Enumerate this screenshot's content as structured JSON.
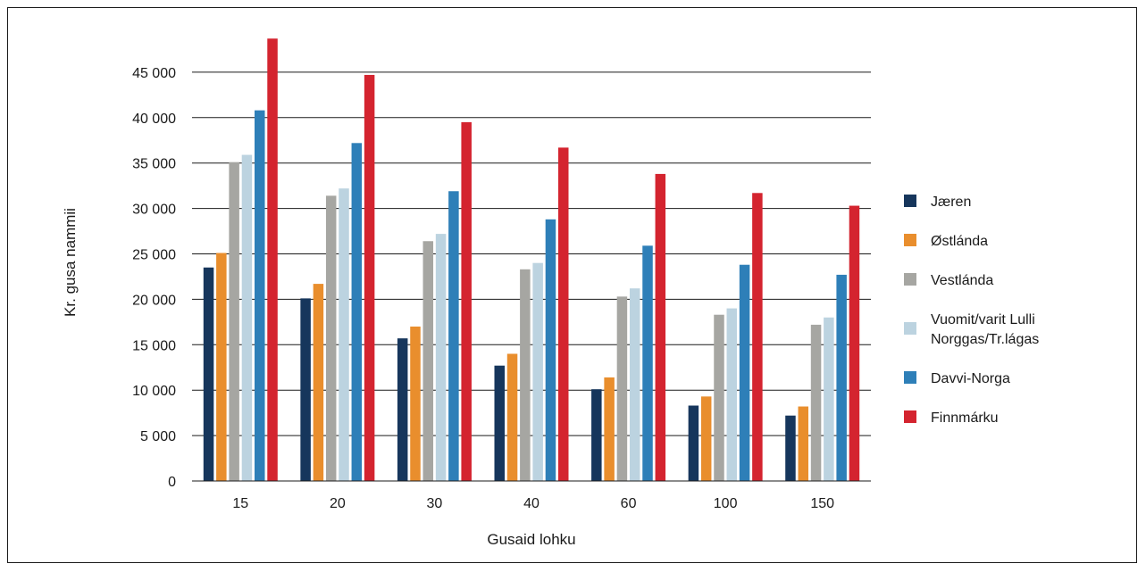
{
  "chart_data": {
    "type": "bar",
    "title": "",
    "xlabel": "Gusaid lohku",
    "ylabel": "Kr. gusa nammii",
    "ylim": [
      0,
      50000
    ],
    "yticks": [
      0,
      5000,
      10000,
      15000,
      20000,
      25000,
      30000,
      35000,
      40000,
      45000
    ],
    "ytick_labels": [
      "0",
      "5 000",
      "10 000",
      "15 000",
      "20 000",
      "25 000",
      "30 000",
      "35 000",
      "40 000",
      "45 000"
    ],
    "grid": true,
    "legend_position": "right",
    "categories": [
      "15",
      "20",
      "30",
      "40",
      "60",
      "100",
      "150"
    ],
    "series": [
      {
        "name": "Jæren",
        "color": "#16365c",
        "values": [
          23500,
          20100,
          15700,
          12700,
          10100,
          8300,
          7200
        ]
      },
      {
        "name": "Østlánda",
        "color": "#e98e2d",
        "values": [
          25100,
          21700,
          17000,
          14000,
          11400,
          9300,
          8200
        ]
      },
      {
        "name": "Vestlánda",
        "color": "#a6a6a2",
        "values": [
          35100,
          31400,
          26400,
          23300,
          20300,
          18300,
          17200
        ]
      },
      {
        "name": "Vuomit/varit Lulli Norggas/Tr.lágas",
        "legend_lines": [
          "Vuomit/varit Lulli",
          "Norggas/Tr.lágas"
        ],
        "color": "#bcd3e0",
        "values": [
          35900,
          32200,
          27200,
          24000,
          21200,
          19000,
          18000
        ]
      },
      {
        "name": "Davvi-Norga",
        "color": "#2e7fb8",
        "values": [
          40800,
          37200,
          31900,
          28800,
          25900,
          23800,
          22700
        ]
      },
      {
        "name": "Finnmárku",
        "color": "#d4242f",
        "values": [
          48700,
          44700,
          39500,
          36700,
          33800,
          31700,
          30300
        ]
      }
    ]
  }
}
